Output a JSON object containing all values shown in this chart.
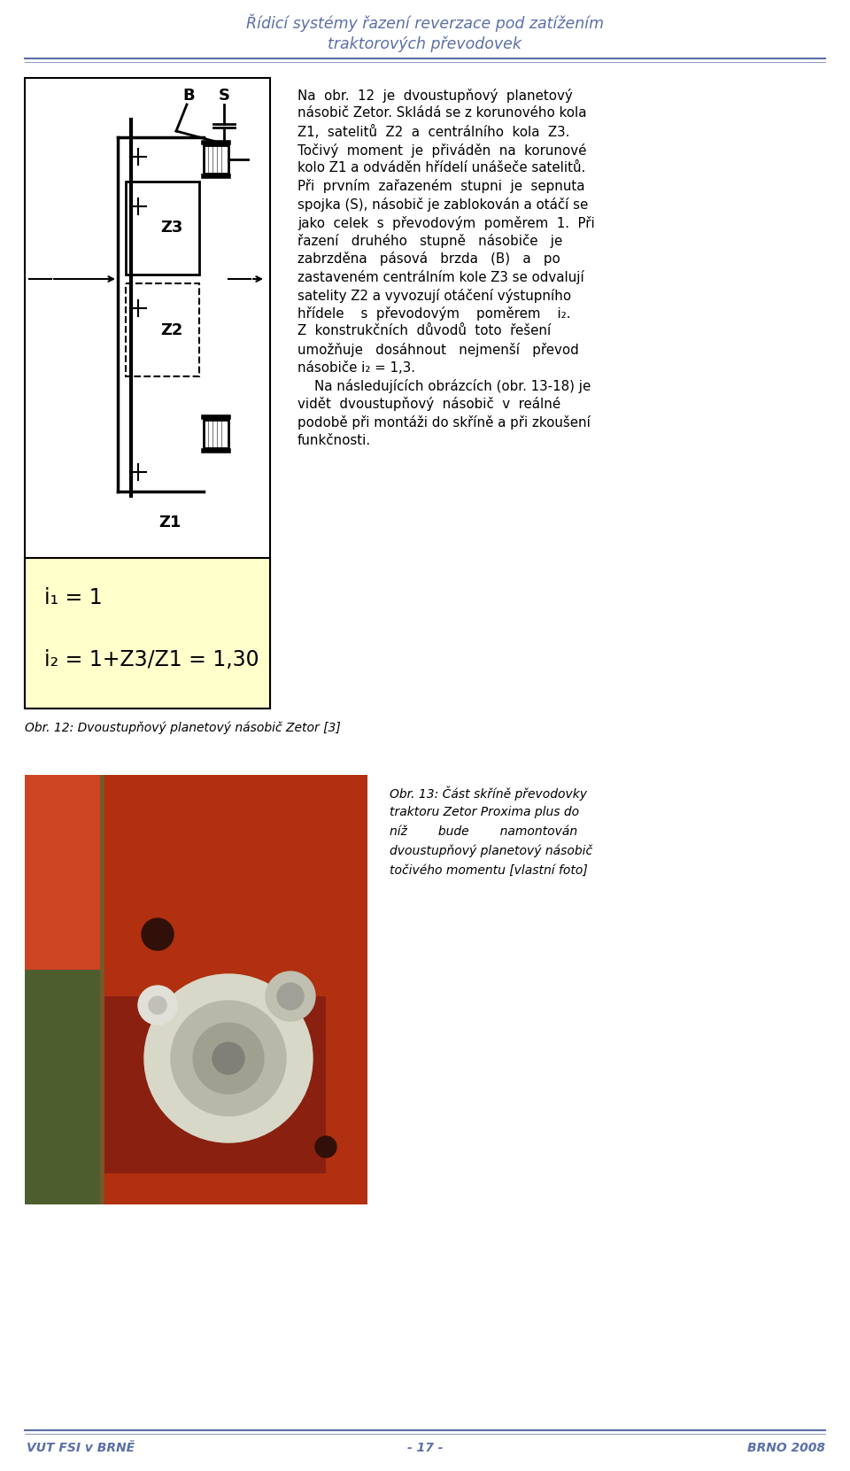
{
  "title_line1": "Řídicí systémy řazení reverzace pod zatížením",
  "title_line2": "traktorových převodovek",
  "title_color": "#5b6fa8",
  "title_fontsize": 12.5,
  "header_line_color": "#5b6fa8",
  "footer_line_color": "#5b6fa8",
  "footer_left": "VUT FSI v BRNĚ",
  "footer_center": "- 17 -",
  "footer_right": "BRNO 2008",
  "footer_fontsize": 10,
  "footer_color": "#5b6fa8",
  "body_fontsize": 10.5,
  "body_color": "#000000",
  "fig1_caption": "Obr. 12: Dvoustupňový planetový násobič Zetor [3]",
  "fig1_caption_fontsize": 10,
  "fig2_caption_line1": "Obr. 13: Část skříně převodovky",
  "fig2_caption_line2": "traktoru Zetor Proxima plus do",
  "fig2_caption_line3": "níž        bude        namontován",
  "fig2_caption_line4": "dvoustupňový planetový násobič",
  "fig2_caption_line5": "točivého momentu [vlastní foto]",
  "fig2_caption_fontsize": 10,
  "fig2_caption_color": "#000000",
  "diagram_bg": "#ffffcc",
  "diagram_formula1": "i₁ = 1",
  "diagram_formula2": "i₂ = 1+Z3/Z1 = 1,30",
  "diagram_fontsize": 15
}
